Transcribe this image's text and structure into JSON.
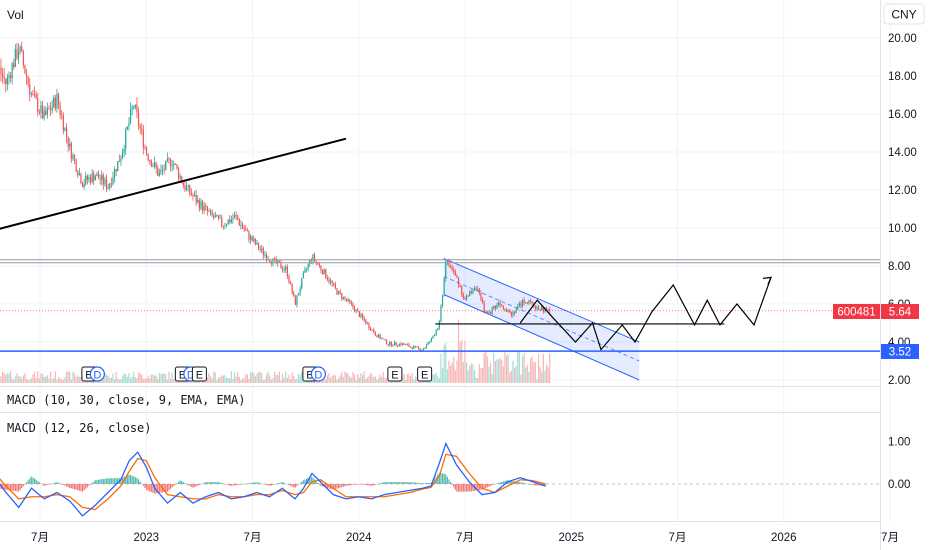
{
  "header": {
    "vol_label": "Vol",
    "currency": "CNY"
  },
  "indicators": {
    "macd1_label": "MACD (10, 30, close, 9, EMA, EMA)",
    "macd2_label": "MACD (12, 26, close)"
  },
  "price_tags": {
    "symbol": "600481",
    "last_price": "5.64",
    "support_level": "3.52",
    "symbol_color": "#f23645",
    "support_color": "#2962ff"
  },
  "events": [
    {
      "type": "E",
      "x": 0.17
    },
    {
      "type": "E",
      "x": 0.2
    },
    {
      "type": "E",
      "x": 0.73
    },
    {
      "type": "D",
      "x": 0.77
    },
    {
      "type": "E",
      "x": 1.17
    },
    {
      "type": "D",
      "x": 1.21
    },
    {
      "type": "E",
      "x": 1.25
    },
    {
      "type": "E",
      "x": 1.77
    },
    {
      "type": "D",
      "x": 1.81
    },
    {
      "type": "E",
      "x": 2.17
    },
    {
      "type": "E",
      "x": 2.31
    }
  ],
  "chart_data": [
    {
      "type": "candlestick",
      "symbol": "600481",
      "currency": "CNY",
      "x_axis": {
        "unit": "years since Jan 2022",
        "ticks": [
          {
            "label": "7月",
            "x": 0.5
          },
          {
            "label": "2023",
            "x": 1.0
          },
          {
            "label": "7月",
            "x": 1.5
          },
          {
            "label": "2024",
            "x": 2.0
          },
          {
            "label": "7月",
            "x": 2.5
          },
          {
            "label": "2025",
            "x": 3.0
          },
          {
            "label": "7月",
            "x": 3.5
          },
          {
            "label": "2026",
            "x": 4.0
          },
          {
            "label": "7月",
            "x": 4.5
          }
        ]
      },
      "y_axis": {
        "ylim": [
          1.6,
          21.2
        ],
        "ticks": [
          "2.00",
          "4.00",
          "6.00",
          "8.00",
          "10.00",
          "12.00",
          "14.00",
          "16.00",
          "18.00",
          "20.00"
        ]
      },
      "price_path": [
        [
          0.0,
          8.4
        ],
        [
          0.06,
          11.5
        ],
        [
          0.14,
          14.5
        ],
        [
          0.22,
          17.5
        ],
        [
          0.28,
          19.0
        ],
        [
          0.34,
          17.6
        ],
        [
          0.4,
          19.5
        ],
        [
          0.46,
          17.0
        ],
        [
          0.52,
          15.8
        ],
        [
          0.58,
          16.8
        ],
        [
          0.64,
          14.2
        ],
        [
          0.7,
          12.4
        ],
        [
          0.76,
          12.8
        ],
        [
          0.82,
          12.2
        ],
        [
          0.88,
          13.8
        ],
        [
          0.94,
          16.5
        ],
        [
          1.0,
          14.0
        ],
        [
          1.06,
          12.8
        ],
        [
          1.12,
          13.6
        ],
        [
          1.18,
          12.2
        ],
        [
          1.24,
          11.4
        ],
        [
          1.3,
          10.7
        ],
        [
          1.36,
          10.2
        ],
        [
          1.42,
          10.6
        ],
        [
          1.48,
          9.6
        ],
        [
          1.54,
          8.8
        ],
        [
          1.6,
          8.2
        ],
        [
          1.66,
          7.8
        ],
        [
          1.7,
          6.0
        ],
        [
          1.74,
          7.5
        ],
        [
          1.78,
          8.5
        ],
        [
          1.84,
          7.6
        ],
        [
          1.9,
          6.6
        ],
        [
          1.96,
          6.0
        ],
        [
          2.02,
          5.2
        ],
        [
          2.08,
          4.4
        ],
        [
          2.14,
          3.9
        ],
        [
          2.2,
          3.9
        ],
        [
          2.26,
          3.7
        ],
        [
          2.3,
          3.6
        ],
        [
          2.34,
          4.1
        ],
        [
          2.38,
          5.0
        ],
        [
          2.41,
          8.3
        ],
        [
          2.46,
          7.4
        ],
        [
          2.5,
          6.2
        ],
        [
          2.55,
          7.0
        ],
        [
          2.6,
          5.4
        ],
        [
          2.66,
          6.1
        ],
        [
          2.72,
          5.5
        ],
        [
          2.78,
          6.2
        ],
        [
          2.84,
          5.8
        ],
        [
          2.9,
          5.64
        ]
      ],
      "annotations": {
        "trendline": [
          [
            -0.02,
            9.0
          ],
          [
            1.94,
            14.7
          ]
        ],
        "resistance_level": 8.25,
        "support_level": 3.52,
        "last_price": 5.64,
        "channel": [
          [
            2.4,
            8.4,
            3.32,
            4.0
          ],
          [
            2.4,
            6.5,
            3.32,
            2.0
          ]
        ],
        "projected_path": [
          [
            2.76,
            5.0
          ],
          [
            2.84,
            6.2
          ],
          [
            2.92,
            5.2
          ],
          [
            3.02,
            4.0
          ],
          [
            3.1,
            5.0
          ],
          [
            3.14,
            3.6
          ],
          [
            3.24,
            4.9
          ],
          [
            3.3,
            4.0
          ],
          [
            3.38,
            5.6
          ],
          [
            3.48,
            7.0
          ],
          [
            3.58,
            4.9
          ],
          [
            3.64,
            6.2
          ],
          [
            3.7,
            4.9
          ],
          [
            3.78,
            6.0
          ],
          [
            3.86,
            4.9
          ],
          [
            3.94,
            7.4
          ]
        ],
        "neckline": [
          [
            2.36,
            4.95
          ],
          [
            3.72,
            4.95
          ]
        ]
      }
    },
    {
      "type": "line",
      "title": "MACD (12, 26, close)",
      "y_axis": {
        "ylim": [
          -0.9,
          1.25
        ],
        "ticks": [
          "1.00",
          "0.00"
        ]
      },
      "series": [
        {
          "values": [
            [
              0.0,
              -0.4
            ],
            [
              0.05,
              0.1
            ],
            [
              0.1,
              0.6
            ],
            [
              0.14,
              1.05
            ],
            [
              0.18,
              0.85
            ],
            [
              0.22,
              0.5
            ],
            [
              0.28,
              0.2
            ],
            [
              0.34,
              -0.2
            ],
            [
              0.4,
              -0.55
            ],
            [
              0.46,
              -0.1
            ],
            [
              0.52,
              -0.35
            ],
            [
              0.58,
              -0.2
            ],
            [
              0.64,
              -0.4
            ],
            [
              0.7,
              -0.75
            ],
            [
              0.76,
              -0.5
            ],
            [
              0.82,
              -0.2
            ],
            [
              0.88,
              0.1
            ],
            [
              0.92,
              0.55
            ],
            [
              0.96,
              0.75
            ],
            [
              1.0,
              0.4
            ],
            [
              1.04,
              -0.1
            ],
            [
              1.1,
              -0.45
            ],
            [
              1.16,
              -0.2
            ],
            [
              1.22,
              -0.45
            ],
            [
              1.28,
              -0.3
            ],
            [
              1.34,
              -0.2
            ],
            [
              1.4,
              -0.35
            ],
            [
              1.46,
              -0.3
            ],
            [
              1.52,
              -0.2
            ],
            [
              1.58,
              -0.3
            ],
            [
              1.64,
              -0.1
            ],
            [
              1.7,
              -0.35
            ],
            [
              1.74,
              -0.1
            ],
            [
              1.78,
              0.25
            ],
            [
              1.82,
              0.05
            ],
            [
              1.88,
              -0.25
            ],
            [
              1.94,
              -0.35
            ],
            [
              2.0,
              -0.3
            ],
            [
              2.06,
              -0.35
            ],
            [
              2.12,
              -0.25
            ],
            [
              2.18,
              -0.2
            ],
            [
              2.24,
              -0.15
            ],
            [
              2.3,
              -0.1
            ],
            [
              2.34,
              -0.05
            ],
            [
              2.38,
              0.5
            ],
            [
              2.41,
              0.95
            ],
            [
              2.46,
              0.45
            ],
            [
              2.52,
              0.05
            ],
            [
              2.58,
              -0.25
            ],
            [
              2.64,
              -0.2
            ],
            [
              2.7,
              0.05
            ],
            [
              2.76,
              0.15
            ],
            [
              2.82,
              0.05
            ],
            [
              2.88,
              -0.05
            ]
          ]
        },
        {
          "values": [
            [
              0.0,
              -0.3
            ],
            [
              0.05,
              -0.05
            ],
            [
              0.1,
              0.4
            ],
            [
              0.14,
              0.85
            ],
            [
              0.18,
              0.95
            ],
            [
              0.22,
              0.65
            ],
            [
              0.28,
              0.3
            ],
            [
              0.34,
              -0.05
            ],
            [
              0.4,
              -0.35
            ],
            [
              0.46,
              -0.3
            ],
            [
              0.52,
              -0.3
            ],
            [
              0.58,
              -0.25
            ],
            [
              0.64,
              -0.3
            ],
            [
              0.7,
              -0.55
            ],
            [
              0.76,
              -0.6
            ],
            [
              0.82,
              -0.35
            ],
            [
              0.88,
              -0.05
            ],
            [
              0.92,
              0.3
            ],
            [
              0.96,
              0.6
            ],
            [
              1.0,
              0.55
            ],
            [
              1.04,
              0.15
            ],
            [
              1.1,
              -0.25
            ],
            [
              1.16,
              -0.3
            ],
            [
              1.22,
              -0.35
            ],
            [
              1.28,
              -0.35
            ],
            [
              1.34,
              -0.25
            ],
            [
              1.4,
              -0.3
            ],
            [
              1.46,
              -0.3
            ],
            [
              1.52,
              -0.25
            ],
            [
              1.58,
              -0.25
            ],
            [
              1.64,
              -0.15
            ],
            [
              1.7,
              -0.25
            ],
            [
              1.74,
              -0.2
            ],
            [
              1.78,
              0.05
            ],
            [
              1.82,
              0.1
            ],
            [
              1.88,
              -0.1
            ],
            [
              1.94,
              -0.3
            ],
            [
              2.0,
              -0.3
            ],
            [
              2.06,
              -0.3
            ],
            [
              2.12,
              -0.3
            ],
            [
              2.18,
              -0.25
            ],
            [
              2.24,
              -0.2
            ],
            [
              2.3,
              -0.12
            ],
            [
              2.34,
              -0.08
            ],
            [
              2.38,
              0.2
            ],
            [
              2.41,
              0.7
            ],
            [
              2.46,
              0.65
            ],
            [
              2.52,
              0.25
            ],
            [
              2.58,
              -0.1
            ],
            [
              2.64,
              -0.2
            ],
            [
              2.7,
              -0.05
            ],
            [
              2.76,
              0.1
            ],
            [
              2.82,
              0.08
            ],
            [
              2.88,
              0.0
            ]
          ]
        }
      ]
    }
  ],
  "colors": {
    "up": "#26a69a",
    "down": "#ef5350",
    "trendline": "#000000",
    "channel": "#2962ff",
    "macd": "#2962ff",
    "signal": "#ff6d00",
    "level": "#9598a1",
    "support": "#2962ff"
  }
}
